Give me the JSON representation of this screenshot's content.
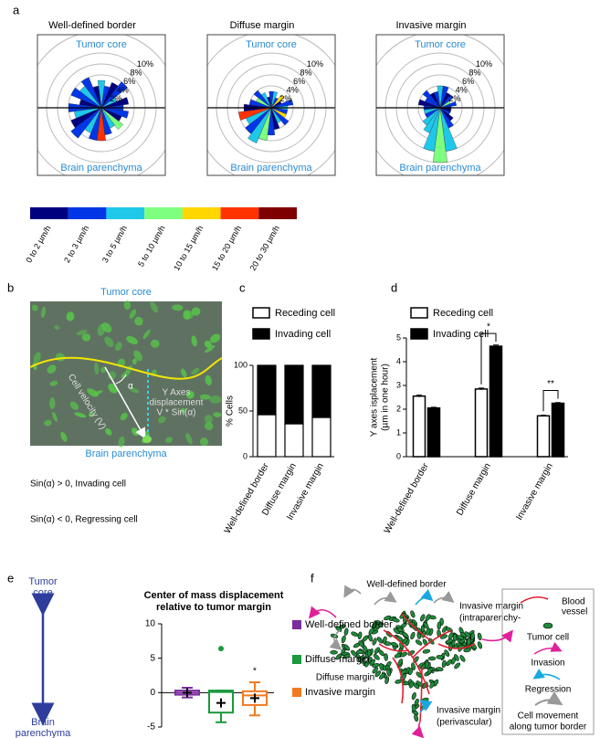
{
  "figure": {
    "panel_labels": [
      "a",
      "b",
      "c",
      "d",
      "e",
      "f"
    ]
  },
  "panel_a": {
    "speed_legend": {
      "labels": [
        "0 to 2 µm/h",
        "2 to 3 µm/h",
        "3 to 5 µm/h",
        "5 to 10 µm/h",
        "10 to 15 µm/h",
        "15 to 20 µm/h",
        "20 to 30 µm/h"
      ],
      "colors": [
        "#00007f",
        "#0036e6",
        "#1fc8e8",
        "#7fff7f",
        "#ffd700",
        "#ff3300",
        "#7f0000"
      ]
    }
  },
  "panel_b": {
    "top_label": "Tumor core",
    "bottom_label": "Brain parenchyma",
    "velocity_label": "Cell velocity (V)",
    "angle_label": "α",
    "displacement_label": [
      "Y Axes",
      "displacement",
      "V * Sin(α)"
    ],
    "notes": [
      "Sin(α) > 0, Invading cell",
      "Sin(α) < 0, Regressing cell"
    ]
  },
  "panel_f": {
    "labels": [
      "Well-defined border",
      "Diffuse margin"
    ],
    "invasive_intra": [
      "Invasive margin",
      "(intraparenchy-"
    ],
    "invasive_peri": [
      "Invasive margin",
      "(perivascular)"
    ],
    "legend": {
      "blood_vessel": [
        "Blood",
        "vessel"
      ],
      "tumor_cell": "Tumor cell",
      "invasion": "Invasion",
      "regression": "Regression",
      "cell_movement": [
        "Cell movement",
        "along tumor border"
      ]
    }
  },
  "chart_data": [
    {
      "type": "rose",
      "title": "Well-defined border",
      "top_label": "Tumor core",
      "bottom_label": "Brain parenchyma",
      "values": [
        4,
        5,
        3,
        6,
        5,
        4,
        5,
        4,
        6,
        5,
        6,
        4,
        6,
        5,
        6,
        7,
        5,
        6,
        6,
        5,
        4,
        5,
        4,
        5
      ],
      "colors": [
        "#0036e6",
        "#00007f",
        "#1fc8e8",
        "#0036e6",
        "#00007f",
        "#0036e6",
        "#1fc8e8",
        "#00007f",
        "#0036e6",
        "#1fc8e8",
        "#0036e6",
        "#00007f",
        "#0036e6",
        "#1fc8e8",
        "#00007f",
        "#0036e6",
        "#1fc8e8",
        "#0036e6",
        "#ff3300",
        "#0036e6",
        "#1fc8e8",
        "#7fff7f",
        "#00007f",
        "#0036e6"
      ],
      "rlim": [
        0,
        14
      ],
      "rticks": [
        {
          "value": 2,
          "label": "2%"
        },
        {
          "value": 4,
          "label": "4%"
        },
        {
          "value": 6,
          "label": "6%"
        },
        {
          "value": 8,
          "label": "8%"
        },
        {
          "value": 10,
          "label": "10%"
        }
      ]
    },
    {
      "type": "rose",
      "title": "Diffuse margin",
      "top_label": "Tumor core",
      "bottom_label": "Brain parenchyma",
      "values": [
        3,
        4,
        2,
        3,
        2,
        3,
        3,
        2,
        3,
        4,
        3,
        4,
        5,
        6,
        5,
        6,
        7,
        6,
        5,
        4,
        3,
        4,
        3,
        3
      ],
      "colors": [
        "#1fc8e8",
        "#0036e6",
        "#00007f",
        "#ffd700",
        "#0036e6",
        "#1fc8e8",
        "#0036e6",
        "#00007f",
        "#1fc8e8",
        "#0036e6",
        "#7fff7f",
        "#0036e6",
        "#00007f",
        "#ff3300",
        "#1fc8e8",
        "#0036e6",
        "#1fc8e8",
        "#7fff7f",
        "#0036e6",
        "#00007f",
        "#1fc8e8",
        "#0036e6",
        "#ffd700",
        "#0036e6"
      ],
      "rlim": [
        0,
        14
      ],
      "rticks": [
        {
          "value": 2,
          "label": "2%"
        },
        {
          "value": 4,
          "label": "4%"
        },
        {
          "value": 6,
          "label": "6%"
        },
        {
          "value": 8,
          "label": "8%"
        },
        {
          "value": 10,
          "label": "10%"
        }
      ]
    },
    {
      "type": "rose",
      "title": "Invasive margin",
      "top_label": "Tumor core",
      "bottom_label": "Brain parenchyma",
      "values": [
        2,
        3,
        2,
        3,
        3,
        4,
        4,
        3,
        3,
        4,
        3,
        4,
        3,
        3,
        3,
        4,
        5,
        8,
        10,
        8,
        4,
        3,
        2,
        2
      ],
      "colors": [
        "#00007f",
        "#0036e6",
        "#7fff7f",
        "#0036e6",
        "#00007f",
        "#0036e6",
        "#1fc8e8",
        "#0036e6",
        "#00007f",
        "#0036e6",
        "#0036e6",
        "#00007f",
        "#0036e6",
        "#1fc8e8",
        "#0036e6",
        "#1fc8e8",
        "#1fc8e8",
        "#1fc8e8",
        "#7fff7f",
        "#1fc8e8",
        "#0036e6",
        "#00007f",
        "#0036e6",
        "#00007f"
      ],
      "rlim": [
        0,
        14
      ],
      "rticks": [
        {
          "value": 2,
          "label": "2%"
        },
        {
          "value": 4,
          "label": "4%"
        },
        {
          "value": 6,
          "label": "6%"
        },
        {
          "value": 8,
          "label": "8%"
        },
        {
          "value": 10,
          "label": "10%"
        }
      ]
    },
    {
      "type": "bar",
      "stacked": true,
      "ylabel": [
        "% Cells"
      ],
      "categories": [
        "Well-defined border",
        "Diffuse margin",
        "Invasive margin"
      ],
      "series": [
        {
          "name": "Receding cell",
          "color": "#ffffff",
          "values": [
            46,
            36,
            43
          ]
        },
        {
          "name": "Invading cell",
          "color": "#000000",
          "values": [
            54,
            64,
            57
          ]
        }
      ],
      "ylim": [
        0,
        100
      ],
      "yticks": [
        0,
        50,
        100
      ]
    },
    {
      "type": "bar",
      "stacked": false,
      "ylabel": [
        "Y axes isplacement",
        "(µm in one hour)"
      ],
      "categories": [
        "Well-defined border",
        "Diffuse margin",
        "Invasive margin"
      ],
      "series": [
        {
          "name": "Receding cell",
          "color": "#ffffff",
          "values": [
            2.55,
            2.85,
            1.72
          ],
          "errors": [
            0.04,
            0.04,
            0.03
          ]
        },
        {
          "name": "Invading cell",
          "color": "#000000",
          "values": [
            2.05,
            4.65,
            2.25
          ],
          "errors": [
            0.03,
            0.05,
            0.03
          ]
        }
      ],
      "annotations": [
        "*",
        "**"
      ],
      "ylim": [
        0,
        5
      ],
      "yticks": [
        0,
        1,
        2,
        3,
        4,
        5
      ]
    },
    {
      "type": "box",
      "title": [
        "Center of mass displacement",
        "relative to tumor margin"
      ],
      "ylabel_top": [
        "Tumor",
        "core"
      ],
      "ylabel_bottom": [
        "Brain",
        "parenchyma"
      ],
      "series": [
        {
          "name": "Well-defined border",
          "color": "#7b2d9e",
          "whisker_low": -0.7,
          "q1": -0.3,
          "median": 0,
          "q3": 0.3,
          "whisker_high": 0.7,
          "mean": 0,
          "outliers": []
        },
        {
          "name": "Diffuse margin",
          "color": "#1a9a3c",
          "whisker_low": -4.3,
          "q1": -2.9,
          "median": 0.1,
          "q3": 0.3,
          "whisker_high": 0.3,
          "mean": -1.5,
          "outliers": [
            6.4
          ]
        },
        {
          "name": "Invasive margin",
          "color": "#f07a22",
          "whisker_low": -3.3,
          "q1": -1.8,
          "median": -0.4,
          "q3": 0.2,
          "whisker_high": 1.5,
          "mean": -0.8,
          "outliers": []
        }
      ],
      "annotations": [
        "*"
      ],
      "ylim": [
        -5,
        10
      ],
      "yticks": [
        -5,
        0,
        5,
        10
      ]
    }
  ]
}
